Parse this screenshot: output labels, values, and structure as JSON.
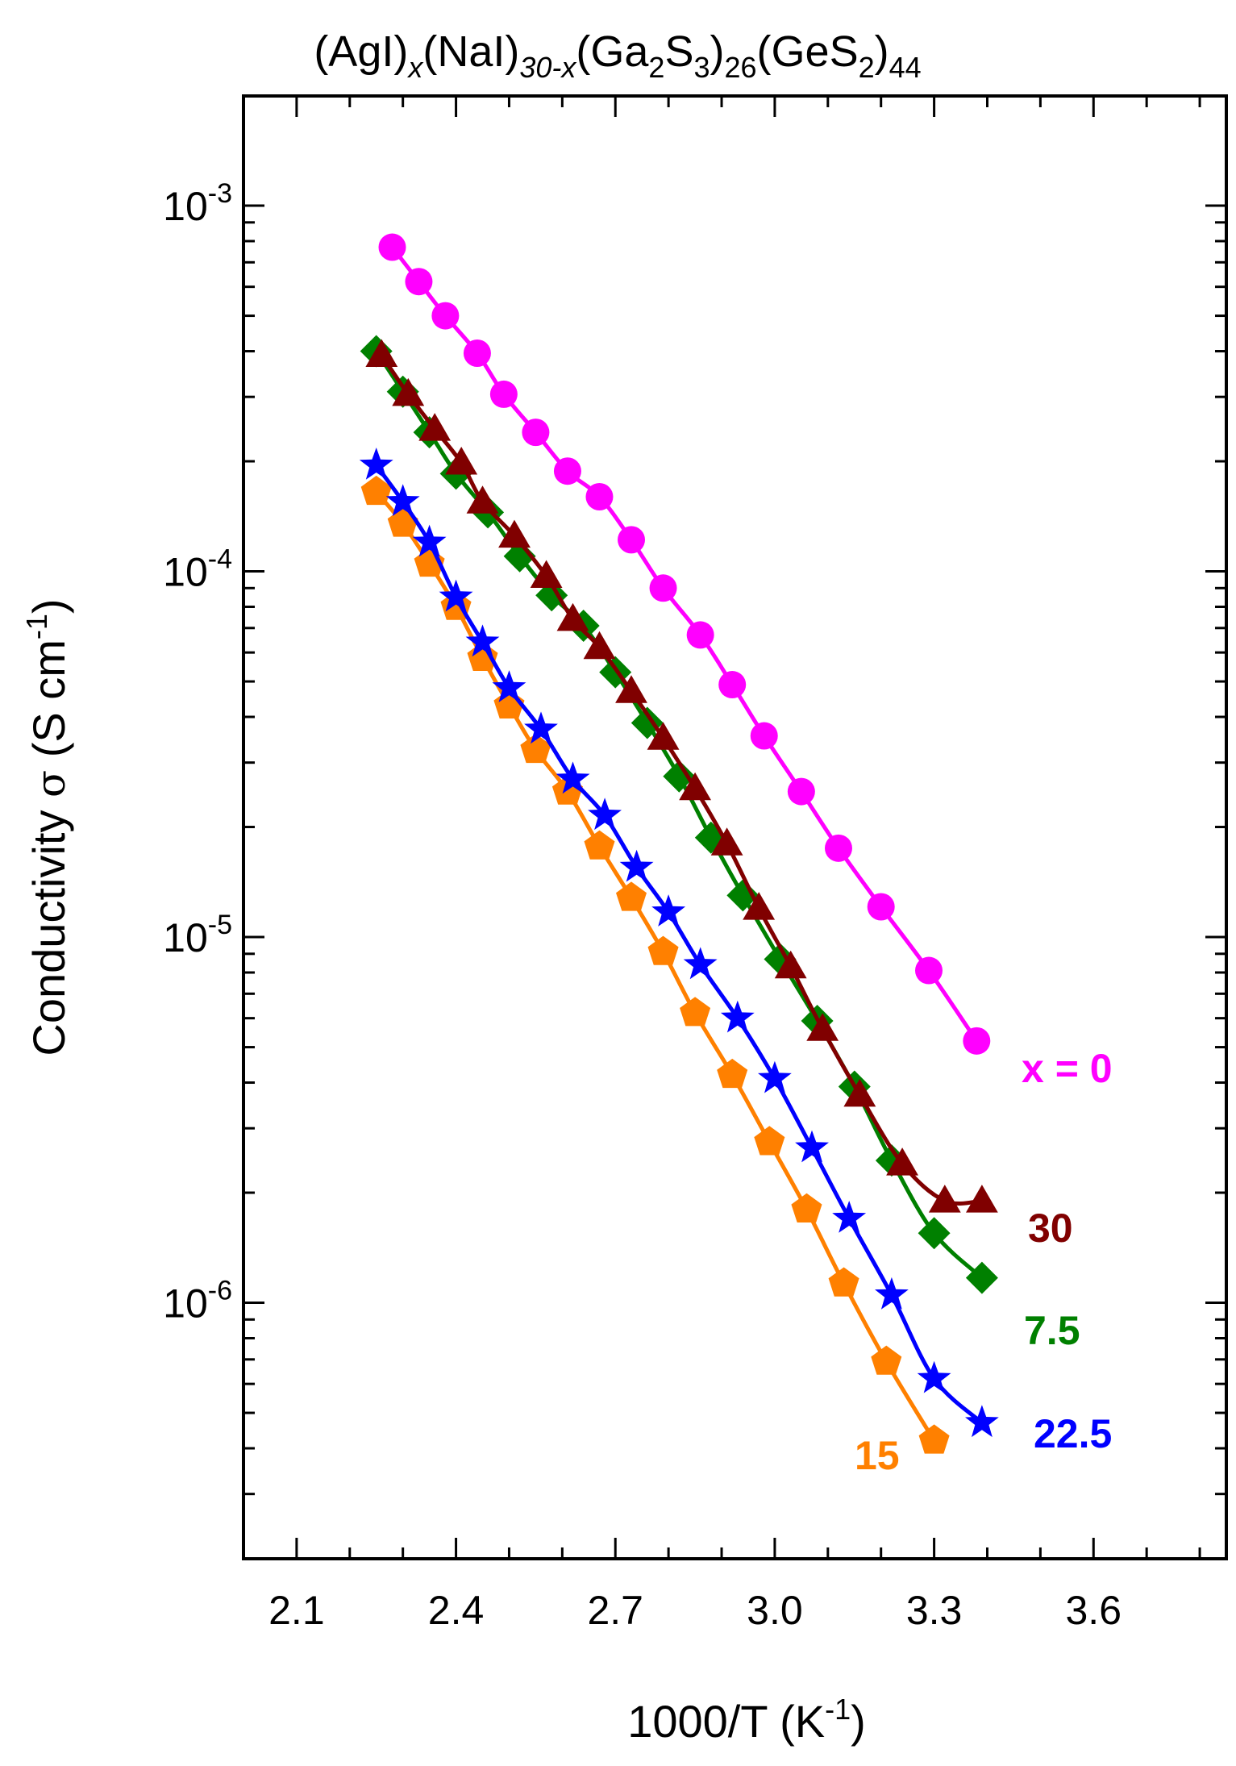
{
  "chart_data": {
    "type": "scatter",
    "title": {
      "p1": "(AgI)",
      "s1": "x",
      "p2": "(NaI)",
      "s2": "30-x",
      "p3": "(Ga",
      "s3": "2",
      "p4": "S",
      "s4": "3",
      "p5": ")",
      "s5": "26",
      "p6": "(GeS",
      "s6": "2",
      "p7": ")",
      "s7": "44"
    },
    "xlabel": {
      "main": "1000/T (K",
      "sup": "-1",
      "end": ")"
    },
    "ylabel": {
      "main": "Conductivity ",
      "sigma": "σ",
      "unit": " (S cm",
      "sup": "-1",
      "end": ")"
    },
    "xlim": [
      2.0,
      3.85
    ],
    "ylim_log10": [
      -6.7,
      -2.7
    ],
    "yscale": "log",
    "x_ticks": [
      {
        "value": 2.1,
        "label": "2.1"
      },
      {
        "value": 2.4,
        "label": "2.4"
      },
      {
        "value": 2.7,
        "label": "2.7"
      },
      {
        "value": 3.0,
        "label": "3.0"
      },
      {
        "value": 3.3,
        "label": "3.3"
      },
      {
        "value": 3.6,
        "label": "3.6"
      }
    ],
    "y_ticks": [
      {
        "exp": -3,
        "base": "10",
        "label": "-3"
      },
      {
        "exp": -4,
        "base": "10",
        "label": "-4"
      },
      {
        "exp": -5,
        "base": "10",
        "label": "-5"
      },
      {
        "exp": -6,
        "base": "10",
        "label": "-6"
      }
    ],
    "series": [
      {
        "name": "x = 0",
        "label": "x = 0",
        "color": "#FF00FF",
        "marker": "circle",
        "x": [
          2.28,
          2.33,
          2.38,
          2.44,
          2.49,
          2.55,
          2.61,
          2.67,
          2.73,
          2.79,
          2.86,
          2.92,
          2.98,
          3.05,
          3.12,
          3.2,
          3.29,
          3.38
        ],
        "y": [
          0.00077,
          0.00062,
          0.0005,
          0.000395,
          0.000305,
          0.00024,
          0.000188,
          0.00016,
          0.000122,
          9e-05,
          6.7e-05,
          4.9e-05,
          3.55e-05,
          2.5e-05,
          1.75e-05,
          1.21e-05,
          8.1e-06,
          5.2e-06
        ]
      },
      {
        "name": "30",
        "label": "30",
        "color": "#800000",
        "marker": "triangle",
        "x": [
          2.26,
          2.31,
          2.36,
          2.41,
          2.45,
          2.51,
          2.57,
          2.62,
          2.67,
          2.73,
          2.79,
          2.85,
          2.91,
          2.97,
          3.03,
          3.09,
          3.16,
          3.24,
          3.32,
          3.39
        ],
        "y": [
          0.00039,
          0.000305,
          0.000245,
          0.000198,
          0.000155,
          0.000125,
          9.7e-05,
          7.4e-05,
          6.2e-05,
          4.7e-05,
          3.5e-05,
          2.55e-05,
          1.8e-05,
          1.2e-05,
          8.3e-06,
          5.6e-06,
          3.7e-06,
          2.4e-06,
          1.9e-06,
          1.9e-06
        ]
      },
      {
        "name": "7.5",
        "label": "7.5",
        "color": "#008000",
        "marker": "diamond",
        "x": [
          2.25,
          2.3,
          2.35,
          2.4,
          2.46,
          2.52,
          2.58,
          2.64,
          2.7,
          2.76,
          2.82,
          2.88,
          2.94,
          3.01,
          3.08,
          3.15,
          3.22,
          3.3,
          3.39
        ],
        "y": [
          0.0004,
          0.00031,
          0.00024,
          0.000185,
          0.000145,
          0.00011,
          8.6e-05,
          7.1e-05,
          5.3e-05,
          3.85e-05,
          2.75e-05,
          1.87e-05,
          1.3e-05,
          8.7e-06,
          5.9e-06,
          3.9e-06,
          2.45e-06,
          1.55e-06,
          1.17e-06
        ]
      },
      {
        "name": "22.5",
        "label": "22.5",
        "color": "#0000FF",
        "marker": "star",
        "x": [
          2.25,
          2.3,
          2.35,
          2.4,
          2.45,
          2.5,
          2.56,
          2.62,
          2.68,
          2.74,
          2.8,
          2.86,
          2.93,
          3.0,
          3.07,
          3.14,
          3.22,
          3.3,
          3.39
        ],
        "y": [
          0.000195,
          0.000155,
          0.00012,
          8.5e-05,
          6.4e-05,
          4.8e-05,
          3.7e-05,
          2.7e-05,
          2.15e-05,
          1.55e-05,
          1.17e-05,
          8.4e-06,
          6e-06,
          4.1e-06,
          2.65e-06,
          1.7e-06,
          1.05e-06,
          6.2e-07,
          4.7e-07
        ]
      },
      {
        "name": "15",
        "label": "15",
        "color": "#FF8000",
        "marker": "pentagon",
        "x": [
          2.25,
          2.3,
          2.35,
          2.4,
          2.45,
          2.5,
          2.55,
          2.61,
          2.67,
          2.73,
          2.79,
          2.85,
          2.92,
          2.99,
          3.06,
          3.13,
          3.21,
          3.3
        ],
        "y": [
          0.000165,
          0.000135,
          0.000105,
          8e-05,
          5.8e-05,
          4.3e-05,
          3.25e-05,
          2.5e-05,
          1.77e-05,
          1.28e-05,
          9.1e-06,
          6.2e-06,
          4.2e-06,
          2.75e-06,
          1.8e-06,
          1.13e-06,
          6.9e-07,
          4.2e-07
        ]
      }
    ]
  }
}
